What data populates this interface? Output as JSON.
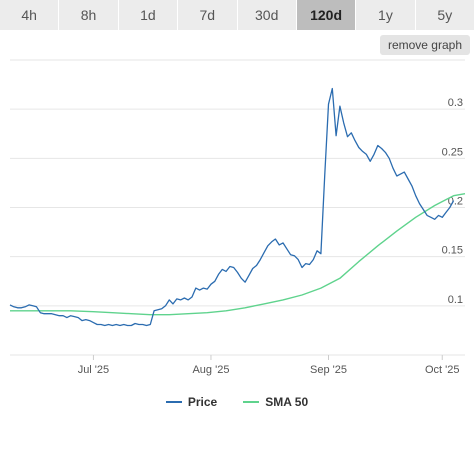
{
  "range_tabs": [
    {
      "label": "4h"
    },
    {
      "label": "8h"
    },
    {
      "label": "1d"
    },
    {
      "label": "7d"
    },
    {
      "label": "30d"
    },
    {
      "label": "120d"
    },
    {
      "label": "1y"
    },
    {
      "label": "5y"
    }
  ],
  "selected_range": "120d",
  "remove_graph_label": "remove graph",
  "colors": {
    "price": "#2b6cb0",
    "sma": "#5fd38d",
    "grid": "#e6e6e6",
    "axis_text": "#555555"
  },
  "chart_data": {
    "type": "line",
    "x_axis": {
      "type": "date",
      "range": [
        "2025-06-09",
        "2025-10-07"
      ],
      "ticks": [
        {
          "date": "2025-07-01",
          "label": "Jul '25"
        },
        {
          "date": "2025-08-01",
          "label": "Aug '25"
        },
        {
          "date": "2025-09-01",
          "label": "Sep '25"
        },
        {
          "date": "2025-10-01",
          "label": "Oct '25"
        }
      ]
    },
    "y_axis": {
      "position": "right",
      "range": [
        0.05,
        0.35
      ],
      "ticks": [
        0.1,
        0.15,
        0.2,
        0.25,
        0.3
      ],
      "tick_labels": [
        "0.1",
        "0.15",
        "0.2",
        "0.25",
        "0.3"
      ]
    },
    "grid": "horizontal",
    "legend_position": "bottom",
    "series": [
      {
        "name": "Price",
        "color": "#2b6cb0",
        "points": [
          [
            "2025-06-09",
            0.101
          ],
          [
            "2025-06-10",
            0.099
          ],
          [
            "2025-06-11",
            0.098
          ],
          [
            "2025-06-12",
            0.098
          ],
          [
            "2025-06-13",
            0.099
          ],
          [
            "2025-06-14",
            0.101
          ],
          [
            "2025-06-15",
            0.1
          ],
          [
            "2025-06-16",
            0.099
          ],
          [
            "2025-06-17",
            0.093
          ],
          [
            "2025-06-18",
            0.092
          ],
          [
            "2025-06-19",
            0.092
          ],
          [
            "2025-06-20",
            0.092
          ],
          [
            "2025-06-21",
            0.091
          ],
          [
            "2025-06-22",
            0.09
          ],
          [
            "2025-06-23",
            0.09
          ],
          [
            "2025-06-24",
            0.088
          ],
          [
            "2025-06-25",
            0.09
          ],
          [
            "2025-06-26",
            0.089
          ],
          [
            "2025-06-27",
            0.088
          ],
          [
            "2025-06-28",
            0.085
          ],
          [
            "2025-06-29",
            0.086
          ],
          [
            "2025-06-30",
            0.085
          ],
          [
            "2025-07-01",
            0.083
          ],
          [
            "2025-07-02",
            0.081
          ],
          [
            "2025-07-03",
            0.081
          ],
          [
            "2025-07-04",
            0.08
          ],
          [
            "2025-07-05",
            0.081
          ],
          [
            "2025-07-06",
            0.08
          ],
          [
            "2025-07-07",
            0.081
          ],
          [
            "2025-07-08",
            0.08
          ],
          [
            "2025-07-09",
            0.081
          ],
          [
            "2025-07-10",
            0.08
          ],
          [
            "2025-07-11",
            0.08
          ],
          [
            "2025-07-12",
            0.082
          ],
          [
            "2025-07-13",
            0.081
          ],
          [
            "2025-07-14",
            0.081
          ],
          [
            "2025-07-15",
            0.08
          ],
          [
            "2025-07-16",
            0.081
          ],
          [
            "2025-07-17",
            0.095
          ],
          [
            "2025-07-18",
            0.096
          ],
          [
            "2025-07-19",
            0.097
          ],
          [
            "2025-07-20",
            0.1
          ],
          [
            "2025-07-21",
            0.106
          ],
          [
            "2025-07-22",
            0.102
          ],
          [
            "2025-07-23",
            0.107
          ],
          [
            "2025-07-24",
            0.106
          ],
          [
            "2025-07-25",
            0.108
          ],
          [
            "2025-07-26",
            0.106
          ],
          [
            "2025-07-27",
            0.109
          ],
          [
            "2025-07-28",
            0.118
          ],
          [
            "2025-07-29",
            0.116
          ],
          [
            "2025-07-30",
            0.118
          ],
          [
            "2025-07-31",
            0.117
          ],
          [
            "2025-08-01",
            0.122
          ],
          [
            "2025-08-02",
            0.125
          ],
          [
            "2025-08-03",
            0.132
          ],
          [
            "2025-08-04",
            0.137
          ],
          [
            "2025-08-05",
            0.135
          ],
          [
            "2025-08-06",
            0.14
          ],
          [
            "2025-08-07",
            0.139
          ],
          [
            "2025-08-08",
            0.134
          ],
          [
            "2025-08-09",
            0.128
          ],
          [
            "2025-08-10",
            0.124
          ],
          [
            "2025-08-11",
            0.131
          ],
          [
            "2025-08-12",
            0.138
          ],
          [
            "2025-08-13",
            0.141
          ],
          [
            "2025-08-14",
            0.147
          ],
          [
            "2025-08-15",
            0.154
          ],
          [
            "2025-08-16",
            0.161
          ],
          [
            "2025-08-17",
            0.165
          ],
          [
            "2025-08-18",
            0.168
          ],
          [
            "2025-08-19",
            0.162
          ],
          [
            "2025-08-20",
            0.164
          ],
          [
            "2025-08-21",
            0.158
          ],
          [
            "2025-08-22",
            0.152
          ],
          [
            "2025-08-23",
            0.151
          ],
          [
            "2025-08-24",
            0.147
          ],
          [
            "2025-08-25",
            0.139
          ],
          [
            "2025-08-26",
            0.143
          ],
          [
            "2025-08-27",
            0.142
          ],
          [
            "2025-08-28",
            0.147
          ],
          [
            "2025-08-29",
            0.156
          ],
          [
            "2025-08-30",
            0.153
          ],
          [
            "2025-08-31",
            0.232
          ],
          [
            "2025-09-01",
            0.305
          ],
          [
            "2025-09-02",
            0.321
          ],
          [
            "2025-09-03",
            0.273
          ],
          [
            "2025-09-04",
            0.303
          ],
          [
            "2025-09-05",
            0.286
          ],
          [
            "2025-09-06",
            0.272
          ],
          [
            "2025-09-07",
            0.276
          ],
          [
            "2025-09-08",
            0.268
          ],
          [
            "2025-09-09",
            0.261
          ],
          [
            "2025-09-10",
            0.257
          ],
          [
            "2025-09-11",
            0.254
          ],
          [
            "2025-09-12",
            0.247
          ],
          [
            "2025-09-13",
            0.254
          ],
          [
            "2025-09-14",
            0.263
          ],
          [
            "2025-09-15",
            0.26
          ],
          [
            "2025-09-16",
            0.256
          ],
          [
            "2025-09-17",
            0.25
          ],
          [
            "2025-09-18",
            0.24
          ],
          [
            "2025-09-19",
            0.232
          ],
          [
            "2025-09-20",
            0.234
          ],
          [
            "2025-09-21",
            0.236
          ],
          [
            "2025-09-22",
            0.229
          ],
          [
            "2025-09-23",
            0.222
          ],
          [
            "2025-09-24",
            0.212
          ],
          [
            "2025-09-25",
            0.204
          ],
          [
            "2025-09-26",
            0.198
          ],
          [
            "2025-09-27",
            0.192
          ],
          [
            "2025-09-28",
            0.19
          ],
          [
            "2025-09-29",
            0.188
          ],
          [
            "2025-09-30",
            0.192
          ],
          [
            "2025-10-01",
            0.19
          ],
          [
            "2025-10-02",
            0.195
          ],
          [
            "2025-10-03",
            0.2
          ],
          [
            "2025-10-04",
            0.207
          ]
        ]
      },
      {
        "name": "SMA 50",
        "color": "#5fd38d",
        "points": [
          [
            "2025-06-09",
            0.095
          ],
          [
            "2025-06-17",
            0.095
          ],
          [
            "2025-06-25",
            0.095
          ],
          [
            "2025-07-01",
            0.094
          ],
          [
            "2025-07-06",
            0.093
          ],
          [
            "2025-07-11",
            0.092
          ],
          [
            "2025-07-16",
            0.091
          ],
          [
            "2025-07-21",
            0.091
          ],
          [
            "2025-07-26",
            0.092
          ],
          [
            "2025-07-31",
            0.093
          ],
          [
            "2025-08-05",
            0.095
          ],
          [
            "2025-08-10",
            0.098
          ],
          [
            "2025-08-15",
            0.102
          ],
          [
            "2025-08-20",
            0.106
          ],
          [
            "2025-08-25",
            0.111
          ],
          [
            "2025-08-30",
            0.118
          ],
          [
            "2025-09-04",
            0.128
          ],
          [
            "2025-09-09",
            0.145
          ],
          [
            "2025-09-14",
            0.161
          ],
          [
            "2025-09-19",
            0.176
          ],
          [
            "2025-09-24",
            0.19
          ],
          [
            "2025-09-29",
            0.202
          ],
          [
            "2025-10-02",
            0.208
          ],
          [
            "2025-10-04",
            0.212
          ],
          [
            "2025-10-07",
            0.214
          ]
        ]
      }
    ]
  }
}
